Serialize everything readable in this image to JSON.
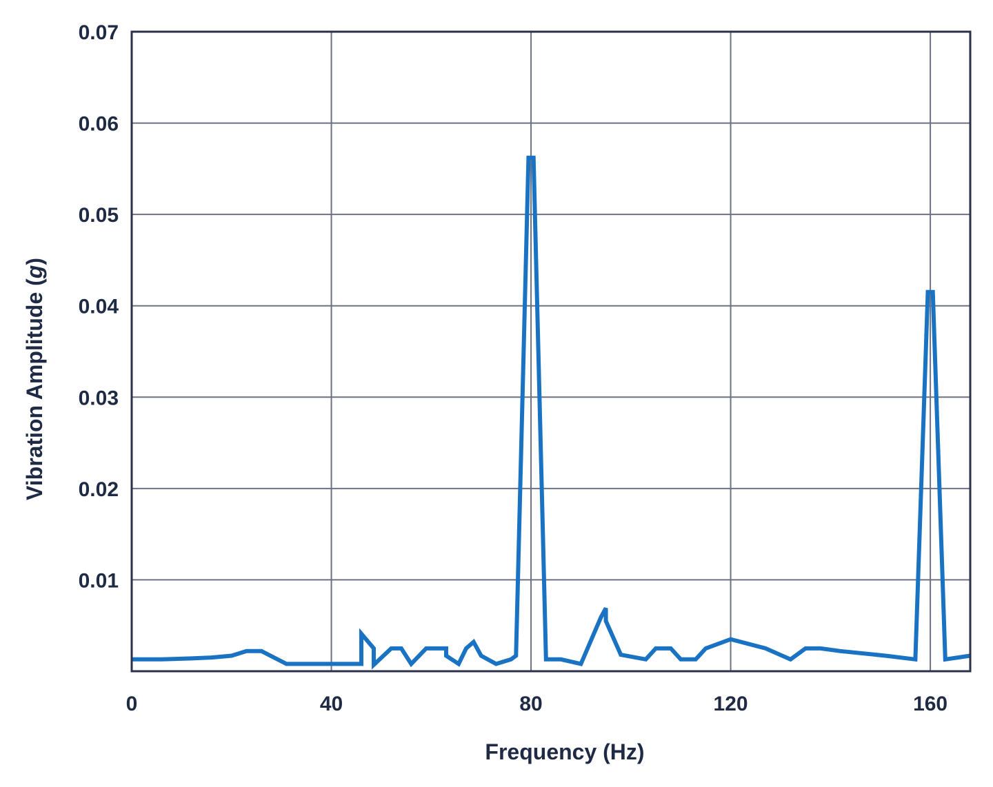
{
  "chart_data": {
    "type": "line",
    "title": "",
    "xlabel": "Frequency (Hz)",
    "ylabel_main": "Vibration Amplitude (",
    "ylabel_unit": "g",
    "ylabel_close": ")",
    "xlim": [
      0,
      168
    ],
    "ylim": [
      0,
      0.07
    ],
    "x_ticks": [
      0,
      40,
      80,
      120,
      160
    ],
    "x_tick_labels": [
      "0",
      "40",
      "80",
      "120",
      "160"
    ],
    "y_ticks": [
      0.01,
      0.02,
      0.03,
      0.04,
      0.05,
      0.06,
      0.07
    ],
    "y_tick_labels": [
      "0.01",
      "0.02",
      "0.03",
      "0.04",
      "0.05",
      "0.06",
      "0.07"
    ],
    "grid": true,
    "line_color": "#1a73c2",
    "series": [
      {
        "x": [
          0,
          6,
          12,
          16,
          20,
          23,
          26,
          31,
          36,
          42,
          46,
          46,
          48.5,
          48.5,
          52,
          54,
          56,
          59,
          62,
          63,
          63,
          65.5,
          67,
          68.5,
          70,
          73,
          76,
          77,
          79.5,
          80.5,
          83,
          86,
          90,
          94,
          95,
          95,
          98,
          103,
          105,
          108,
          110,
          113,
          115,
          120,
          127,
          132,
          135,
          138,
          142,
          151,
          157,
          159.5,
          160.5,
          163,
          168
        ],
        "y": [
          0.0013,
          0.0013,
          0.0014,
          0.0015,
          0.0017,
          0.0022,
          0.0022,
          0.0008,
          0.0008,
          0.0008,
          0.0008,
          0.0041,
          0.0025,
          0.0007,
          0.0025,
          0.0025,
          0.0008,
          0.0025,
          0.0025,
          0.0025,
          0.0017,
          0.0008,
          0.0025,
          0.0032,
          0.0017,
          0.0008,
          0.0013,
          0.0017,
          0.0562,
          0.0562,
          0.0013,
          0.0013,
          0.0008,
          0.0059,
          0.0069,
          0.0055,
          0.0018,
          0.0013,
          0.0025,
          0.0025,
          0.0013,
          0.0013,
          0.0025,
          0.0035,
          0.0025,
          0.0013,
          0.0025,
          0.0025,
          0.0022,
          0.0017,
          0.0013,
          0.0415,
          0.0415,
          0.0013,
          0.0017
        ]
      }
    ]
  }
}
